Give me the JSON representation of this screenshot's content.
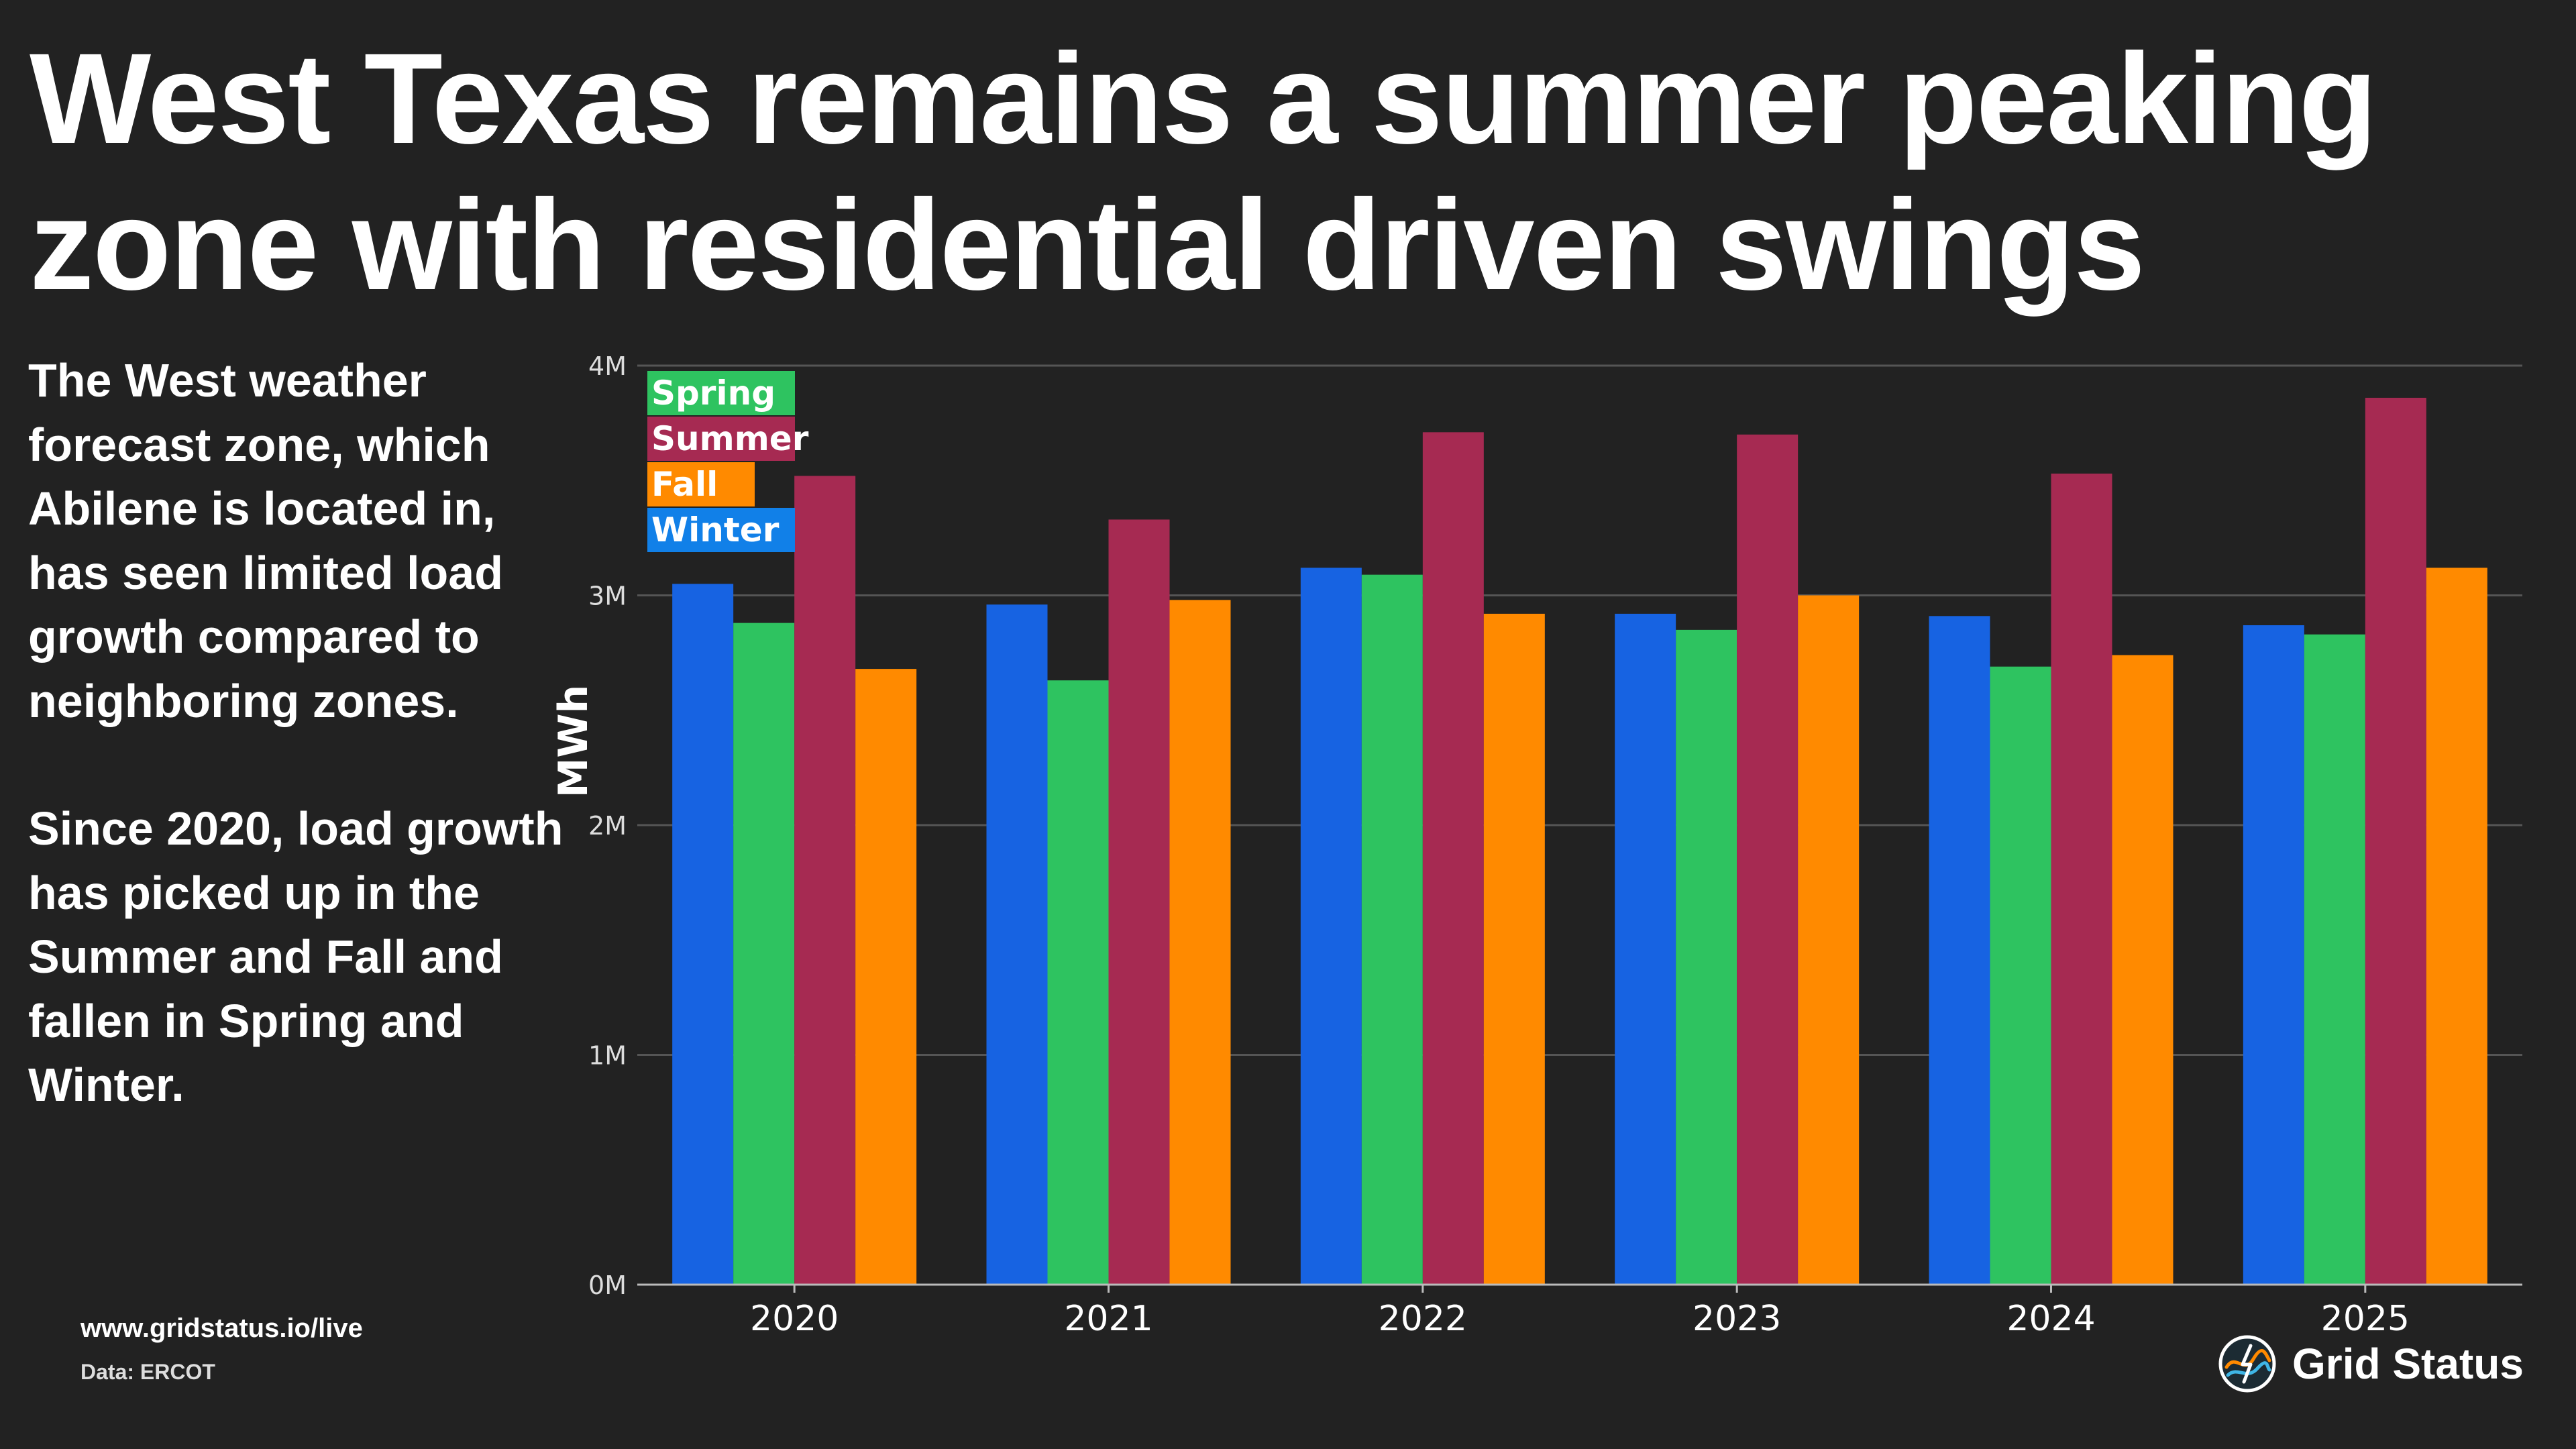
{
  "header": {
    "title": "West Texas remains a summer peaking zone with residential driven swings"
  },
  "description": {
    "paragraphs": [
      "The West weather forecast zone, which Abilene is located in, has seen limited load growth compared to neighboring zones.",
      "Since 2020, load growth has picked up in the Summer and Fall and fallen in Spring and Winter."
    ]
  },
  "footer": {
    "url": "www.gridstatus.io/live",
    "data_source": "Data: ERCOT",
    "brand": "Grid Status",
    "logo_icon": "grid-status-logo-icon"
  },
  "colors": {
    "background": "#222222",
    "Winter": "#1763E2",
    "Spring": "#2EC360",
    "Summer": "#A62A52",
    "Fall": "#FF8A00",
    "legend_winter": "#1180E8",
    "grid": "#555555"
  },
  "chart_data": {
    "type": "bar",
    "title": "",
    "xlabel": "",
    "ylabel": "MWh",
    "categories": [
      "2020",
      "2021",
      "2022",
      "2023",
      "2024",
      "2025"
    ],
    "series": [
      {
        "name": "Winter",
        "values": [
          3050000,
          2960000,
          3120000,
          2920000,
          2910000,
          2870000
        ]
      },
      {
        "name": "Spring",
        "values": [
          2880000,
          2630000,
          3090000,
          2850000,
          2690000,
          2830000
        ]
      },
      {
        "name": "Summer",
        "values": [
          3520000,
          3330000,
          3710000,
          3700000,
          3530000,
          3860000
        ]
      },
      {
        "name": "Fall",
        "values": [
          2680000,
          2980000,
          2920000,
          3000000,
          2740000,
          3120000
        ]
      }
    ],
    "legend": [
      "Spring",
      "Summer",
      "Fall",
      "Winter"
    ],
    "legend_placement": "top-left",
    "ylim": [
      0,
      4000000
    ],
    "yticks": [
      0,
      1000000,
      2000000,
      3000000,
      4000000
    ],
    "ytick_labels": [
      "0M",
      "1M",
      "2M",
      "3M",
      "4M"
    ],
    "grid": true
  }
}
